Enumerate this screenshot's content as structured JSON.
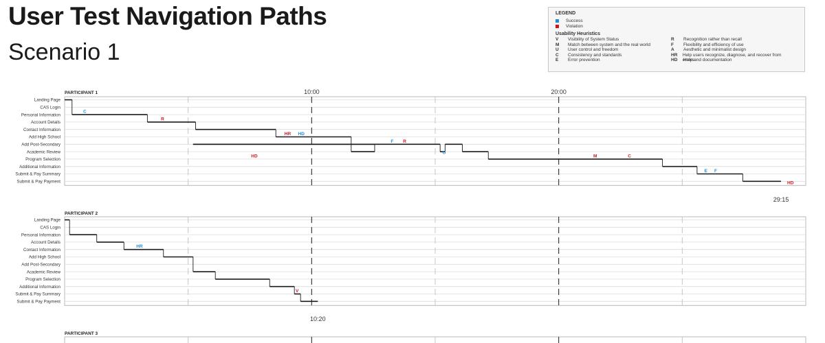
{
  "title": "User Test Navigation Paths",
  "subtitle": "Scenario 1",
  "legend": {
    "heading": "LEGEND",
    "status": [
      {
        "label": "Success",
        "color": "#1e8fd6"
      },
      {
        "label": "Violation",
        "color": "#d2141e"
      }
    ],
    "heuristics_heading": "Usability Heuristics",
    "heuristics_left": [
      {
        "code": "V",
        "label": "Visibility of System Status"
      },
      {
        "code": "M",
        "label": "Match between system and the real world"
      },
      {
        "code": "U",
        "label": "User control and freedom"
      },
      {
        "code": "C",
        "label": "Consistency and standards"
      },
      {
        "code": "E",
        "label": "Error prevention"
      }
    ],
    "heuristics_right": [
      {
        "code": "R",
        "label": "Recognition rather than recall"
      },
      {
        "code": "F",
        "label": "Flexibility and efficiency of use"
      },
      {
        "code": "A",
        "label": "Aesthetic and minimalist design"
      },
      {
        "code": "HR",
        "label": "Help users recognize, diagnose, and recover from errors"
      },
      {
        "code": "HD",
        "label": "Help and documentation"
      }
    ]
  },
  "chart_data": {
    "type": "line",
    "x_unit": "minutes",
    "xlim": [
      0,
      30
    ],
    "major_ticks": [
      {
        "minutes": 10,
        "label": "10:00"
      },
      {
        "minutes": 20,
        "label": "20:00"
      }
    ],
    "minor_ticks": [
      5,
      15,
      25
    ],
    "colors": {
      "success": "#1e8fd6",
      "violation": "#d2141e",
      "path": "#1a1a1a"
    },
    "pages": [
      "Landing Page",
      "CAS Login",
      "Personal Information",
      "Account Details",
      "Contact Information",
      "Add High School",
      "Add Post-Secondary",
      "Academic Review",
      "Program Selection",
      "Additional Information",
      "Submit & Pay Summary",
      "Submit & Pay Payment"
    ],
    "participants": [
      {
        "name": "PARTICIPANT 1",
        "end_label": "29:15",
        "steps": [
          [
            0,
            0.3,
            0
          ],
          [
            0.3,
            3.35,
            2
          ],
          [
            3.35,
            5.3,
            3
          ],
          [
            5.3,
            8.55,
            4
          ],
          [
            8.55,
            11.6,
            5
          ],
          [
            11.6,
            12.55,
            7
          ],
          [
            12.55,
            5.2,
            6
          ],
          [
            5.2,
            15.2,
            6
          ],
          [
            15.2,
            15.4,
            7
          ],
          [
            15.4,
            16.1,
            6
          ],
          [
            16.1,
            17.15,
            7
          ],
          [
            17.15,
            24.2,
            8
          ],
          [
            24.2,
            25.6,
            9
          ],
          [
            25.6,
            27.45,
            10
          ],
          [
            27.45,
            29.0,
            11
          ]
        ],
        "annotations": [
          {
            "label": "C",
            "kind": "success",
            "minutes": 0.75,
            "page": 2
          },
          {
            "label": "R",
            "kind": "violation",
            "minutes": 3.9,
            "page": 3
          },
          {
            "label": "HR",
            "kind": "violation",
            "minutes": 8.9,
            "page": 5
          },
          {
            "label": "HD",
            "kind": "success",
            "minutes": 9.45,
            "page": 5
          },
          {
            "label": "F",
            "kind": "success",
            "minutes": 13.2,
            "page": 6
          },
          {
            "label": "R",
            "kind": "violation",
            "minutes": 13.7,
            "page": 6
          },
          {
            "label": "U",
            "kind": "success",
            "minutes": 15.3,
            "page": 7.55
          },
          {
            "label": "HD",
            "kind": "violation",
            "minutes": 7.55,
            "page": 8
          },
          {
            "label": "M",
            "kind": "violation",
            "minutes": 21.4,
            "page": 8
          },
          {
            "label": "C",
            "kind": "violation",
            "minutes": 22.8,
            "page": 8
          },
          {
            "label": "E",
            "kind": "success",
            "minutes": 25.9,
            "page": 10
          },
          {
            "label": "F",
            "kind": "success",
            "minutes": 26.3,
            "page": 10
          },
          {
            "label": "HD",
            "kind": "violation",
            "minutes": 29.25,
            "page": 11.6
          }
        ]
      },
      {
        "name": "PARTICIPANT 2",
        "end_label": "10:20",
        "steps": [
          [
            0,
            0.2,
            0
          ],
          [
            0.2,
            1.3,
            2
          ],
          [
            1.3,
            2.4,
            3
          ],
          [
            2.4,
            4.0,
            4
          ],
          [
            4.0,
            5.2,
            5
          ],
          [
            5.2,
            6.1,
            7
          ],
          [
            6.1,
            8.3,
            8
          ],
          [
            8.3,
            9.3,
            9
          ],
          [
            9.3,
            9.55,
            10
          ],
          [
            9.55,
            10.25,
            11
          ]
        ],
        "annotations": [
          {
            "label": "HR",
            "kind": "success",
            "minutes": 2.9,
            "page": 4
          },
          {
            "label": "V",
            "kind": "violation",
            "minutes": 9.35,
            "page": 10
          }
        ]
      },
      {
        "name": "PARTICIPANT 3",
        "steps": [],
        "annotations": []
      }
    ]
  }
}
